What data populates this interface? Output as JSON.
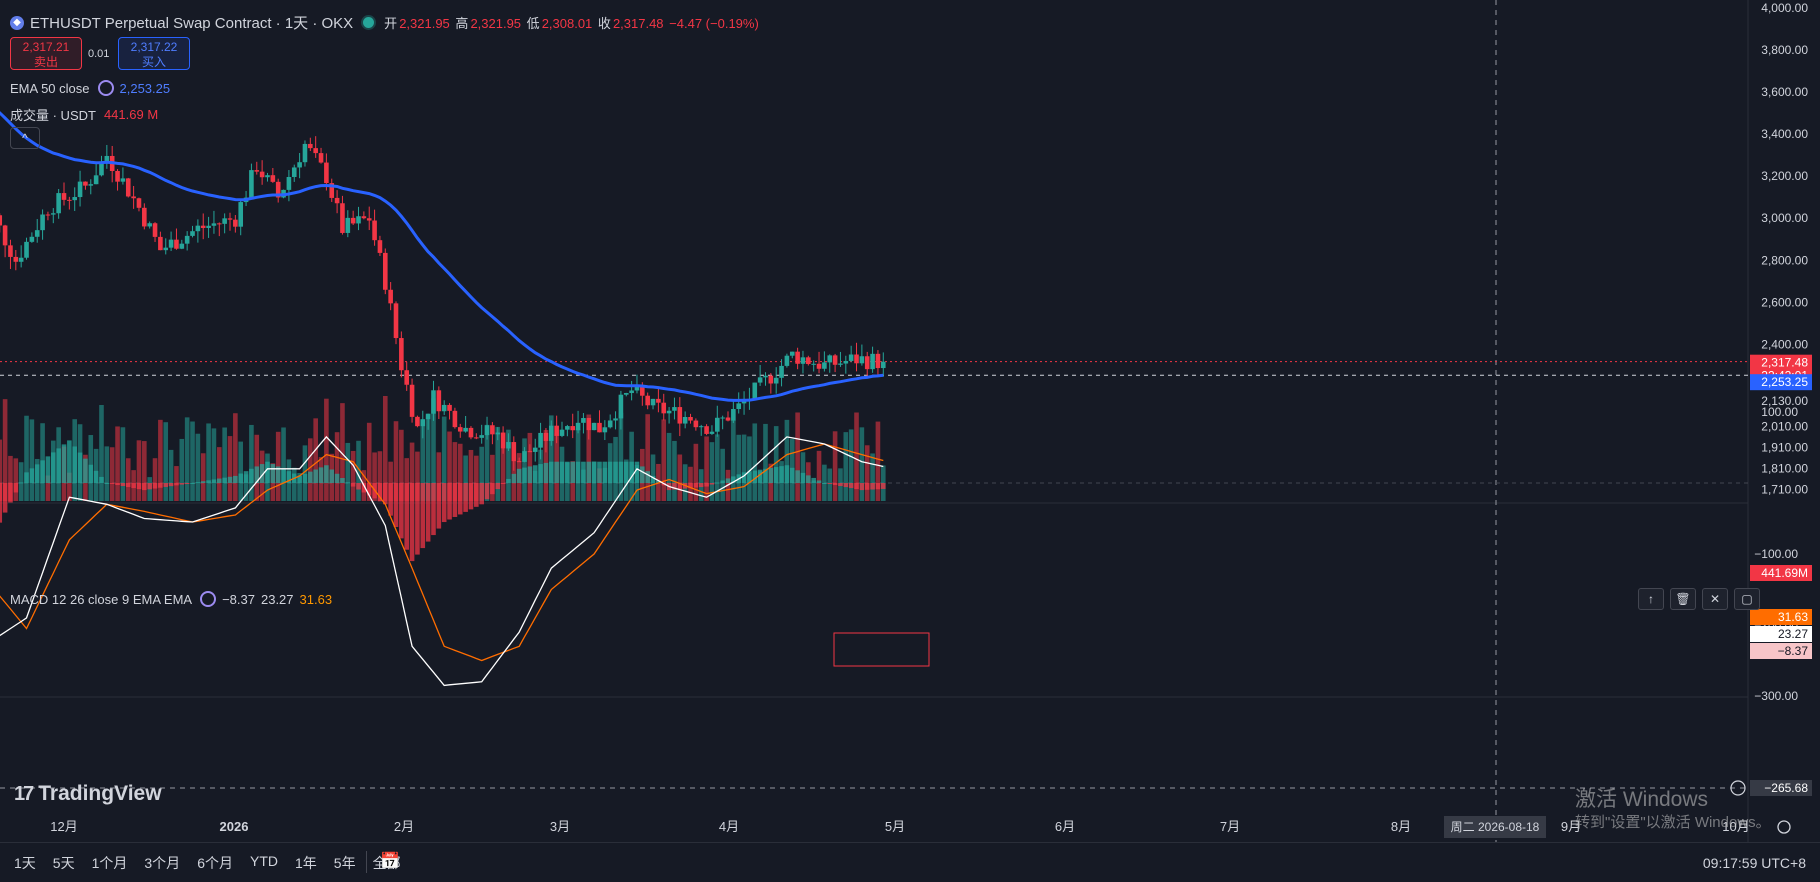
{
  "header": {
    "symbol_icon": "ethereum-icon",
    "title": "ETHUSDT Perpetual Swap Contract · 1天 · OKX",
    "open_label": "开",
    "open_value": "2,321.95",
    "high_label": "高",
    "high_value": "2,321.95",
    "low_label": "低",
    "low_value": "2,308.01",
    "close_label": "收",
    "close_value": "2,317.48",
    "change_value": "−4.47 (−0.19%)"
  },
  "trade": {
    "sell_price": "2,317.21",
    "sell_label": "卖出",
    "spread": "0.01",
    "buy_price": "2,317.22",
    "buy_label": "买入"
  },
  "indicators": {
    "ema_label": "EMA 50 close",
    "ema_value": "2,253.25",
    "volume_label": "成交量 · USDT",
    "volume_value": "441.69 M",
    "macd_label": "MACD 12 26 close 9 EMA EMA",
    "macd_hist": "−8.37",
    "macd_line": "23.27",
    "macd_signal": "31.63"
  },
  "price_axis": {
    "ticks": [
      "4,000.00",
      "3,800.00",
      "3,600.00",
      "3,400.00",
      "3,200.00",
      "3,000.00",
      "2,800.00",
      "2,600.00",
      "2,400.00",
      "2,130.00",
      "2,010.00",
      "1,910.00",
      "1,810.00",
      "1,710.00"
    ],
    "last_price": "2,317.48",
    "countdown": "22:42:01",
    "ema_price": "2,253.25",
    "volume_badge": "441.69M"
  },
  "macd_axis": {
    "ticks": [
      "100.00",
      "−100.00",
      "−200.00",
      "−300.00"
    ],
    "signal_badge": "31.63",
    "macd_badge": "23.27",
    "hist_badge": "−8.37",
    "crosshair_value": "−265.68"
  },
  "time_axis": {
    "ticks": [
      "12月",
      "2026",
      "2月",
      "3月",
      "4月",
      "5月",
      "6月",
      "7月",
      "8月",
      "9月",
      "10月"
    ],
    "crosshair_date": "周二 2026-08-18"
  },
  "bottom_bar": {
    "ranges": [
      "1天",
      "5天",
      "1个月",
      "3个月",
      "6个月",
      "YTD",
      "1年",
      "5年",
      "全部"
    ],
    "clock": "09:17:59 UTC+8"
  },
  "branding": {
    "logo_text": "TradingView"
  },
  "windows_watermark": {
    "line1": "激活 Windows",
    "line2": "转到\"设置\"以激活 Windows。"
  },
  "colors": {
    "background": "#161a25",
    "up": "#26a69a",
    "down": "#f23645",
    "ema": "#2962ff",
    "macd_line": "#ffffff",
    "signal_line": "#ff6d00"
  },
  "chart_data": {
    "type": "candlestick",
    "interval": "1天",
    "price_range": [
      1650,
      4000
    ],
    "ema_period": 50,
    "ema_current": 2253.25,
    "last_close": 2317.48,
    "anchors": [
      {
        "date": "2025-11-18",
        "close": 3000
      },
      {
        "date": "2025-11-22",
        "close": 2800
      },
      {
        "date": "2025-11-28",
        "close": 3050
      },
      {
        "date": "2025-12-05",
        "close": 3150
      },
      {
        "date": "2025-12-09",
        "close": 3300
      },
      {
        "date": "2025-12-15",
        "close": 3050
      },
      {
        "date": "2025-12-19",
        "close": 2850
      },
      {
        "date": "2025-12-26",
        "close": 2950
      },
      {
        "date": "2026-01-02",
        "close": 3000
      },
      {
        "date": "2026-01-06",
        "close": 3250
      },
      {
        "date": "2026-01-10",
        "close": 3100
      },
      {
        "date": "2026-01-15",
        "close": 3350
      },
      {
        "date": "2026-01-19",
        "close": 3200
      },
      {
        "date": "2026-01-22",
        "close": 2950
      },
      {
        "date": "2026-01-27",
        "close": 3000
      },
      {
        "date": "2026-01-30",
        "close": 2700
      },
      {
        "date": "2026-02-02",
        "close": 2300
      },
      {
        "date": "2026-02-05",
        "close": 2000
      },
      {
        "date": "2026-02-08",
        "close": 2150
      },
      {
        "date": "2026-02-14",
        "close": 2000
      },
      {
        "date": "2026-02-20",
        "close": 1970
      },
      {
        "date": "2026-02-24",
        "close": 1850
      },
      {
        "date": "2026-03-02",
        "close": 1980
      },
      {
        "date": "2026-03-07",
        "close": 2050
      },
      {
        "date": "2026-03-11",
        "close": 2000
      },
      {
        "date": "2026-03-17",
        "close": 2180
      },
      {
        "date": "2026-03-21",
        "close": 2100
      },
      {
        "date": "2026-03-28",
        "close": 2050
      },
      {
        "date": "2026-04-01",
        "close": 2000
      },
      {
        "date": "2026-04-06",
        "close": 2100
      },
      {
        "date": "2026-04-10",
        "close": 2200
      },
      {
        "date": "2026-04-16",
        "close": 2350
      },
      {
        "date": "2026-04-22",
        "close": 2300
      },
      {
        "date": "2026-04-28",
        "close": 2330
      },
      {
        "date": "2026-05-03",
        "close": 2317
      }
    ],
    "macd_range": [
      -300,
      110
    ],
    "macd_anchors": [
      {
        "date": "2025-11-18",
        "macd": -220,
        "signal": -150
      },
      {
        "date": "2025-11-24",
        "macd": -190,
        "signal": -205
      },
      {
        "date": "2025-12-02",
        "macd": -20,
        "signal": -80
      },
      {
        "date": "2025-12-09",
        "macd": -30,
        "signal": -30
      },
      {
        "date": "2025-12-16",
        "macd": -50,
        "signal": -40
      },
      {
        "date": "2025-12-25",
        "macd": -55,
        "signal": -55
      },
      {
        "date": "2026-01-02",
        "macd": -35,
        "signal": -45
      },
      {
        "date": "2026-01-08",
        "macd": 20,
        "signal": -10
      },
      {
        "date": "2026-01-14",
        "macd": 20,
        "signal": 10
      },
      {
        "date": "2026-01-19",
        "macd": 65,
        "signal": 40
      },
      {
        "date": "2026-01-24",
        "macd": 25,
        "signal": 30
      },
      {
        "date": "2026-01-30",
        "macd": -60,
        "signal": -30
      },
      {
        "date": "2026-02-04",
        "macd": -230,
        "signal": -120
      },
      {
        "date": "2026-02-10",
        "macd": -285,
        "signal": -230
      },
      {
        "date": "2026-02-17",
        "macd": -280,
        "signal": -250
      },
      {
        "date": "2026-02-24",
        "macd": -210,
        "signal": -230
      },
      {
        "date": "2026-03-02",
        "macd": -120,
        "signal": -150
      },
      {
        "date": "2026-03-10",
        "macd": -70,
        "signal": -100
      },
      {
        "date": "2026-03-18",
        "macd": 20,
        "signal": -10
      },
      {
        "date": "2026-03-24",
        "macd": -5,
        "signal": 5
      },
      {
        "date": "2026-03-31",
        "macd": -20,
        "signal": -15
      },
      {
        "date": "2026-04-07",
        "macd": 10,
        "signal": -5
      },
      {
        "date": "2026-04-15",
        "macd": 65,
        "signal": 40
      },
      {
        "date": "2026-04-22",
        "macd": 55,
        "signal": 55
      },
      {
        "date": "2026-04-29",
        "macd": 30,
        "signal": 40
      },
      {
        "date": "2026-05-03",
        "macd": 23.27,
        "signal": 31.63
      }
    ]
  }
}
